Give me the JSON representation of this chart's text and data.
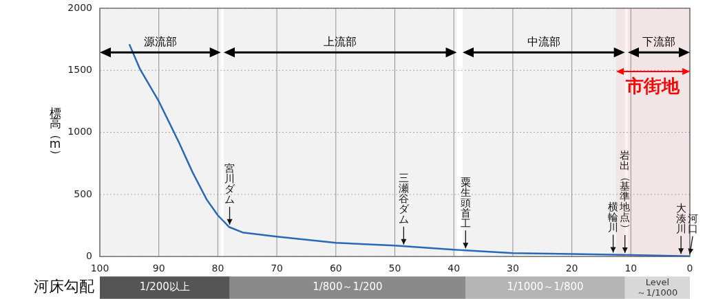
{
  "chart_data": [
    {
      "type": "line",
      "ylabel": "標高（m）",
      "x": [
        95,
        93.2,
        90,
        86.6,
        84.3,
        81.9,
        80,
        78.1,
        75.8,
        70,
        60,
        50,
        40,
        30,
        20,
        10,
        0
      ],
      "series": [
        {
          "color": "#2a6fc0",
          "values": [
            1710,
            1510,
            1250,
            920,
            680,
            460,
            332,
            238,
            194,
            160,
            110,
            88,
            55,
            28,
            20,
            12,
            3
          ]
        }
      ],
      "xlim": [
        100,
        0
      ],
      "xticks": [
        100,
        90,
        80,
        70,
        60,
        50,
        40,
        30,
        20,
        10,
        0
      ],
      "ylim": [
        0,
        2000
      ],
      "yticks": [
        0,
        500,
        1000,
        1500,
        2000
      ],
      "grid": true,
      "marker": "none",
      "line_style": "solid",
      "bands": [
        {
          "axis": "x",
          "from": 100,
          "to": 79.5,
          "label": "源流部",
          "color": "#000000"
        },
        {
          "axis": "x",
          "from": 79,
          "to": 39.5,
          "label": "上流部",
          "color": "#000000"
        },
        {
          "axis": "x",
          "from": 38.5,
          "to": 11,
          "label": "中流部",
          "color": "#000000"
        },
        {
          "axis": "x",
          "from": 10.5,
          "to": 0,
          "label": "下流部",
          "color": "#000000"
        },
        {
          "axis": "x",
          "from": 12.5,
          "to": 0,
          "label": "市街地",
          "color": "#ff0000"
        }
      ],
      "annotations": [
        {
          "text": "宮川ダム",
          "x": 78,
          "y": 240
        },
        {
          "text": "三瀬谷ダム",
          "x": 48.5,
          "y": 80
        },
        {
          "text": "粟生頭首工",
          "x": 38,
          "y": 50
        },
        {
          "text": "横輪川",
          "x": 13,
          "y": 15
        },
        {
          "text": "岩出（基準地点）",
          "x": 11,
          "y": 12
        },
        {
          "text": "大湊川",
          "x": 1.5,
          "y": 5
        },
        {
          "text": "河口",
          "x": 0,
          "y": 3
        }
      ]
    },
    {
      "type": "bar",
      "orientation": "horizontal",
      "stacked": true,
      "categories": [
        "河床勾配"
      ],
      "series": [
        {
          "name": "Level ～1/1000",
          "color": "#d8d8d8",
          "values": [
            11
          ]
        },
        {
          "name": "1/1000～1/800",
          "color": "#b5b5b5",
          "values": [
            27
          ]
        },
        {
          "name": "1/800～1/200",
          "color": "#8a8a8a",
          "values": [
            40
          ]
        },
        {
          "name": "1/200以上",
          "color": "#555555",
          "values": [
            22
          ]
        }
      ],
      "xlim": [
        100,
        0
      ],
      "tick_labels": "y"
    }
  ]
}
